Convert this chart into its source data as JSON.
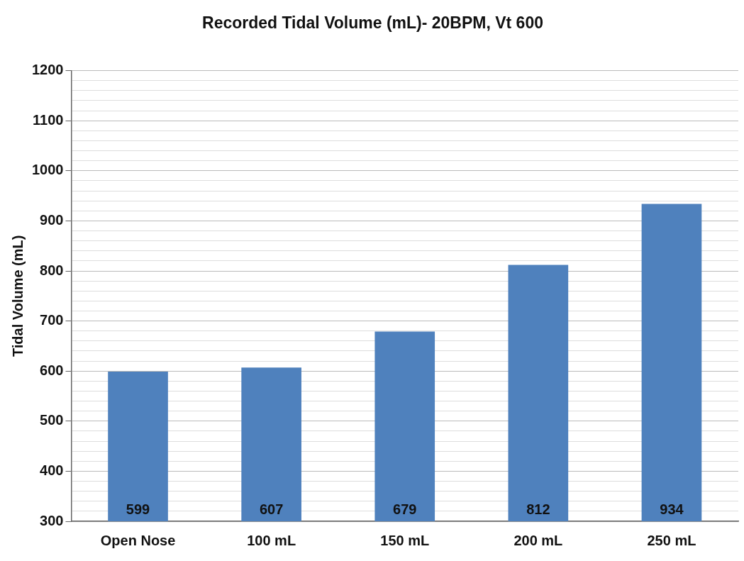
{
  "chart_data": {
    "type": "bar",
    "title": "Recorded Tidal Volume (mL)- 20BPM, Vt 600",
    "ylabel": "Tidal Volume (mL)",
    "categories": [
      "Open Nose",
      "100 mL",
      "150 mL",
      "200 mL",
      "250 mL"
    ],
    "values": [
      599,
      607,
      679,
      812,
      934
    ],
    "color": "#4f81bd",
    "ylim": [
      300,
      1200
    ],
    "yticks": [
      300,
      {
        "value": 320,
        "label": null
      },
      {
        "value": 340,
        "label": null
      },
      {
        "value": 360,
        "label": null
      },
      {
        "value": 380,
        "label": null
      },
      400,
      {
        "value": 420,
        "label": null
      },
      {
        "value": 440,
        "label": null
      },
      {
        "value": 460,
        "label": null
      },
      {
        "value": 480,
        "label": null
      },
      500,
      {
        "value": 520,
        "label": null
      },
      {
        "value": 540,
        "label": null
      },
      {
        "value": 560,
        "label": null
      },
      {
        "value": 580,
        "label": null
      },
      600,
      {
        "value": 620,
        "label": null
      },
      {
        "value": 640,
        "label": null
      },
      {
        "value": 660,
        "label": null
      },
      {
        "value": 680,
        "label": null
      },
      700,
      {
        "value": 720,
        "label": null
      },
      {
        "value": 740,
        "label": null
      },
      {
        "value": 760,
        "label": null
      },
      {
        "value": 780,
        "label": null
      },
      800,
      {
        "value": 820,
        "label": null
      },
      {
        "value": 840,
        "label": null
      },
      {
        "value": 860,
        "label": null
      },
      {
        "value": 880,
        "label": null
      },
      900,
      {
        "value": 920,
        "label": null
      },
      {
        "value": 940,
        "label": null
      },
      {
        "value": 960,
        "label": null
      },
      {
        "value": 980,
        "label": null
      },
      1000,
      {
        "value": 1020,
        "label": null
      },
      {
        "value": 1040,
        "label": null
      },
      {
        "value": 1060,
        "label": null
      },
      {
        "value": 1080,
        "label": null
      },
      1100,
      {
        "value": 1120,
        "label": null
      },
      {
        "value": 1140,
        "label": null
      },
      {
        "value": 1160,
        "label": null
      },
      {
        "value": 1180,
        "label": null
      },
      1200
    ],
    "grid": "y",
    "data_labels": true,
    "legend": false
  }
}
